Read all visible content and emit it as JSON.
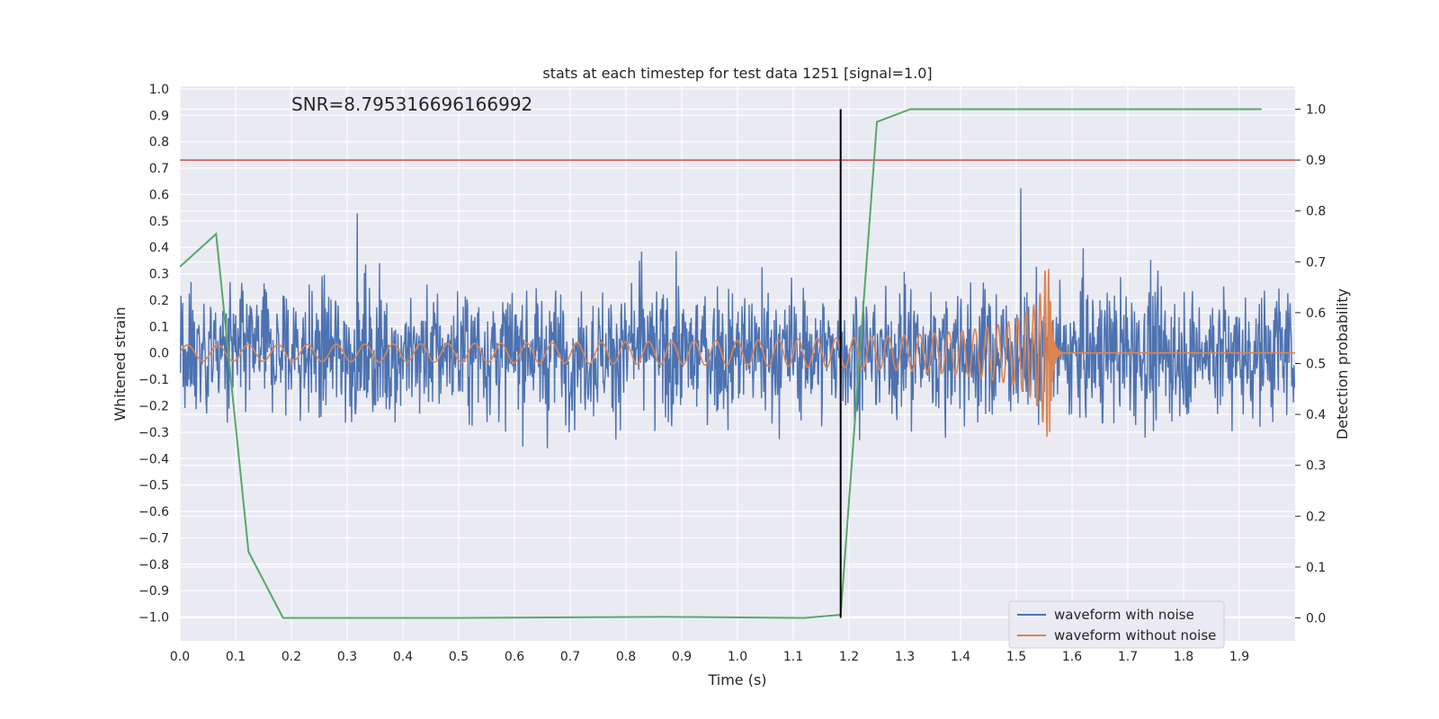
{
  "chart_data": {
    "type": "line",
    "title": "stats at each timestep for test data 1251 [signal=1.0]",
    "annotation": "SNR=8.795316696166992",
    "xlabel": "Time (s)",
    "ylabel_left": "Whitened strain",
    "ylabel_right": "Detection probability",
    "xlim": [
      0,
      2.0
    ],
    "ylim_left": [
      -1.09,
      1.01
    ],
    "ylim_right": [
      -0.045,
      1.045
    ],
    "x_ticks": [
      "0.0",
      "0.1",
      "0.2",
      "0.3",
      "0.4",
      "0.5",
      "0.6",
      "0.7",
      "0.8",
      "0.9",
      "1.0",
      "1.1",
      "1.2",
      "1.3",
      "1.4",
      "1.5",
      "1.6",
      "1.7",
      "1.8",
      "1.9"
    ],
    "y_ticks_left": [
      "1.0",
      "0.9",
      "0.8",
      "0.7",
      "0.6",
      "0.5",
      "0.4",
      "0.3",
      "0.2",
      "0.1",
      "0.0",
      "−0.1",
      "−0.2",
      "−0.3",
      "−0.4",
      "−0.5",
      "−0.6",
      "−0.7",
      "−0.8",
      "−0.9",
      "−1.0"
    ],
    "y_ticks_right": [
      "1.0",
      "0.9",
      "0.8",
      "0.7",
      "0.6",
      "0.5",
      "0.4",
      "0.3",
      "0.2",
      "0.1",
      "0.0"
    ],
    "grid": true,
    "legend_position": "lower-right",
    "series": [
      {
        "name": "waveform with noise",
        "color": "#4c72b0",
        "axis": "left",
        "kind": "noisy strain, approx. amplitude ±0.5, peaks to ±0.9"
      },
      {
        "name": "waveform without noise",
        "color": "#dd8452",
        "axis": "left",
        "kind": "chirp signal, amplitude grows from 0.03 to 0.3, merger near 1.56 s, ringdown to 0"
      },
      {
        "name": "",
        "color": "#55a868",
        "axis": "right",
        "x": [
          0.0,
          0.065,
          0.123,
          0.185,
          0.5,
          0.87,
          1.12,
          1.185,
          1.25,
          1.31,
          1.94
        ],
        "y": [
          0.69,
          0.755,
          0.13,
          0.0,
          0.0,
          0.002,
          0.0,
          0.006,
          0.975,
          1.0,
          1.0
        ]
      }
    ],
    "threshold_line": {
      "axis": "right",
      "y": 0.9,
      "color": "#c44e52"
    },
    "marker_line": {
      "x": 1.185,
      "y_range_right": [
        0.0,
        1.0
      ],
      "color": "#000000"
    }
  }
}
